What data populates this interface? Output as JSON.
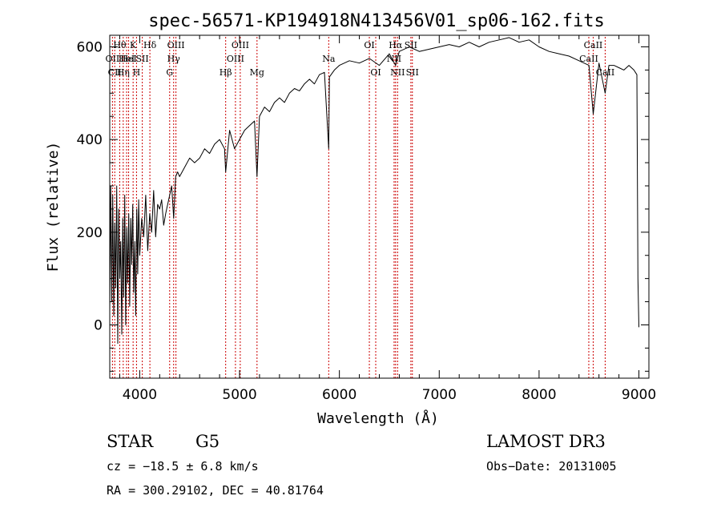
{
  "chart_data": {
    "type": "line",
    "title": "spec-56571-KP194918N413456V01_sp06-162.fits",
    "xlabel": "Wavelength (Å)",
    "ylabel": "Flux (relative)",
    "xlim": [
      3700,
      9100
    ],
    "ylim": [
      -115,
      625
    ],
    "x_ticks": [
      4000,
      5000,
      6000,
      7000,
      8000,
      9000
    ],
    "x_tick_labels": [
      "4000",
      "5000",
      "6000",
      "7000",
      "8000",
      "9000"
    ],
    "y_ticks": [
      0,
      200,
      400,
      600
    ],
    "y_tick_labels": [
      "0",
      "200",
      "400",
      "600"
    ],
    "grid": false,
    "legend": "none",
    "series": [
      {
        "name": "flux",
        "color": "#000000",
        "x": [
          3700,
          3710,
          3720,
          3730,
          3740,
          3750,
          3760,
          3770,
          3780,
          3790,
          3800,
          3810,
          3820,
          3830,
          3840,
          3850,
          3860,
          3870,
          3880,
          3890,
          3900,
          3910,
          3920,
          3930,
          3940,
          3950,
          3960,
          3970,
          3980,
          3990,
          4000,
          4020,
          4040,
          4060,
          4080,
          4100,
          4120,
          4140,
          4160,
          4180,
          4200,
          4220,
          4240,
          4260,
          4280,
          4300,
          4320,
          4340,
          4360,
          4380,
          4400,
          4450,
          4500,
          4550,
          4600,
          4650,
          4700,
          4750,
          4800,
          4850,
          4861,
          4900,
          4950,
          5000,
          5050,
          5100,
          5150,
          5175,
          5200,
          5250,
          5300,
          5350,
          5400,
          5450,
          5500,
          5550,
          5600,
          5650,
          5700,
          5750,
          5800,
          5850,
          5893,
          5900,
          5950,
          6000,
          6100,
          6200,
          6300,
          6400,
          6500,
          6563,
          6600,
          6700,
          6800,
          6900,
          7000,
          7100,
          7200,
          7300,
          7400,
          7500,
          7600,
          7700,
          7800,
          7900,
          8000,
          8100,
          8200,
          8300,
          8400,
          8500,
          8542,
          8600,
          8662,
          8700,
          8750,
          8800,
          8850,
          8900,
          8950,
          8980,
          8990,
          9000
        ],
        "values": [
          30,
          300,
          50,
          280,
          20,
          220,
          80,
          300,
          -40,
          250,
          100,
          180,
          -20,
          230,
          60,
          280,
          0,
          210,
          90,
          240,
          40,
          230,
          130,
          260,
          70,
          180,
          20,
          250,
          110,
          270,
          150,
          230,
          190,
          280,
          160,
          240,
          200,
          290,
          190,
          260,
          250,
          270,
          215,
          240,
          260,
          280,
          300,
          230,
          320,
          330,
          320,
          340,
          360,
          350,
          360,
          380,
          370,
          390,
          400,
          380,
          330,
          420,
          380,
          400,
          420,
          430,
          440,
          320,
          450,
          470,
          460,
          480,
          490,
          480,
          500,
          510,
          505,
          520,
          530,
          520,
          540,
          545,
          380,
          535,
          550,
          560,
          570,
          565,
          575,
          560,
          585,
          560,
          590,
          600,
          590,
          595,
          600,
          605,
          600,
          610,
          600,
          610,
          615,
          620,
          610,
          615,
          600,
          590,
          585,
          580,
          570,
          560,
          455,
          565,
          500,
          560,
          560,
          555,
          550,
          560,
          550,
          540,
          100,
          -5
        ]
      }
    ],
    "line_markers": [
      {
        "wavelength": 3727,
        "labels": [
          "OII"
        ],
        "row": 1
      },
      {
        "wavelength": 3750,
        "labels": [
          "CII"
        ],
        "row": 2
      },
      {
        "wavelength": 3800,
        "labels": [
          "Hθ"
        ],
        "row": 0
      },
      {
        "wavelength": 3835,
        "labels": [
          "Hη"
        ],
        "row": 2
      },
      {
        "wavelength": 3869,
        "labels": [
          "HeI"
        ],
        "row": 1
      },
      {
        "wavelength": 3889,
        "labels": [
          "HeI"
        ],
        "row": 1
      },
      {
        "wavelength": 3934,
        "labels": [
          "K"
        ],
        "row": 0
      },
      {
        "wavelength": 3968,
        "labels": [
          "H"
        ],
        "row": 2
      },
      {
        "wavelength": 4026,
        "labels": [
          "SII"
        ],
        "row": 1
      },
      {
        "wavelength": 4102,
        "labels": [
          "Hδ"
        ],
        "row": 0
      },
      {
        "wavelength": 4300,
        "labels": [
          "G"
        ],
        "row": 2
      },
      {
        "wavelength": 4340,
        "labels": [
          "Hγ"
        ],
        "row": 1
      },
      {
        "wavelength": 4363,
        "labels": [
          "OIII"
        ],
        "row": 0
      },
      {
        "wavelength": 4861,
        "labels": [
          "Hβ"
        ],
        "row": 2
      },
      {
        "wavelength": 4959,
        "labels": [
          "OIII"
        ],
        "row": 1
      },
      {
        "wavelength": 5007,
        "labels": [
          "OIII"
        ],
        "row": 0
      },
      {
        "wavelength": 5175,
        "labels": [
          "Mg"
        ],
        "row": 2
      },
      {
        "wavelength": 5893,
        "labels": [
          "Na"
        ],
        "row": 1
      },
      {
        "wavelength": 6300,
        "labels": [
          "OI"
        ],
        "row": 0
      },
      {
        "wavelength": 6364,
        "labels": [
          "OI"
        ],
        "row": 2
      },
      {
        "wavelength": 6548,
        "labels": [
          "NII"
        ],
        "row": 1
      },
      {
        "wavelength": 6563,
        "labels": [
          "Hα"
        ],
        "row": 0
      },
      {
        "wavelength": 6583,
        "labels": [
          "NII"
        ],
        "row": 2
      },
      {
        "wavelength": 6716,
        "labels": [
          "SII"
        ],
        "row": 0
      },
      {
        "wavelength": 6731,
        "labels": [
          "SII"
        ],
        "row": 2
      },
      {
        "wavelength": 8498,
        "labels": [
          "CaII"
        ],
        "row": 1
      },
      {
        "wavelength": 8542,
        "labels": [
          "CaII"
        ],
        "row": 0
      },
      {
        "wavelength": 8662,
        "labels": [
          "CaII"
        ],
        "row": 2
      }
    ],
    "colors": {
      "marker_line": "#cc0000",
      "axes": "#000000",
      "trace": "#000000"
    }
  },
  "info": {
    "object_class": "STAR",
    "subclass": "G5",
    "survey": "LAMOST DR3",
    "redshift_text": "cz = −18.5 ± 6.8 km/s",
    "obs_date_text": "Obs−Date: 20131005",
    "coords_text": "RA = 300.29102, DEC =  40.81764"
  }
}
